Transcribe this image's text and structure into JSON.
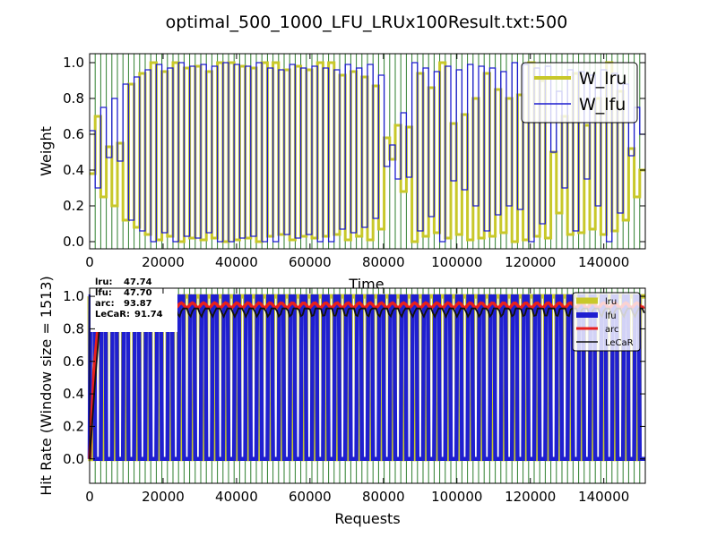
{
  "figure": {
    "title": "optimal_500_1000_LFU_LRUx100Result.txt:500"
  },
  "colors": {
    "vline": "#2f7f2f",
    "lru": "#c8c82a",
    "lfu": "#1f1fd0",
    "lfu_line": "#1c1ccf",
    "arc": "#e8201e",
    "lecar": "#111111"
  },
  "chart_data": [
    {
      "type": "line",
      "title": "",
      "xlabel": "Time",
      "ylabel": "Weight",
      "xlim": [
        0,
        151300
      ],
      "ylim": [
        -0.04,
        1.05
      ],
      "xticks": [
        "0",
        "20000",
        "40000",
        "60000",
        "80000",
        "100000",
        "120000",
        "140000"
      ],
      "yticks": [
        "0.0",
        "0.2",
        "0.4",
        "0.6",
        "0.8",
        "1.0"
      ],
      "grid": false,
      "legend_position": "top-right",
      "vertical_lines": "green vertical marker line every ~1513 requests",
      "series": [
        {
          "name": "W_lru",
          "color": "#c8c82a",
          "note": "complement of W_lfu (W_lru = 1 - W_lfu)"
        },
        {
          "name": "W_lfu",
          "color": "#1c1ccf",
          "step_period": 3026,
          "x": [
            0,
            3026,
            6052,
            9078,
            12104,
            15130,
            18156,
            21182,
            24208,
            27234,
            30260,
            33286,
            36312,
            39338,
            42364,
            45390,
            48416,
            51442,
            54468,
            57494,
            60520,
            63546,
            66572,
            69598,
            72624,
            75650,
            78676,
            81702,
            84728,
            87754,
            90780,
            93806,
            96832,
            99858,
            102884,
            105910,
            108936,
            111962,
            114988,
            118014,
            121040,
            124066,
            127092,
            130118,
            133144,
            136170,
            139196,
            142222,
            145248,
            148274
          ],
          "high": [
            0.62,
            0.75,
            0.8,
            0.88,
            0.92,
            0.96,
            0.99,
            0.97,
            1.0,
            0.98,
            0.99,
            0.98,
            1.0,
            0.99,
            0.98,
            1.0,
            0.97,
            0.96,
            0.99,
            0.97,
            0.98,
            0.97,
            0.96,
            0.99,
            0.97,
            0.99,
            0.93,
            0.54,
            0.72,
            1.0,
            0.97,
            0.95,
            0.98,
            0.96,
            0.99,
            0.98,
            0.97,
            0.95,
            1.0,
            0.99,
            0.97,
            0.98,
            0.84,
            0.96,
            0.95,
            0.93,
            0.96,
            0.94,
            0.88,
            0.75
          ],
          "low": [
            0.3,
            0.47,
            0.45,
            0.12,
            0.06,
            0.0,
            0.05,
            0.0,
            0.03,
            0.02,
            0.05,
            0.0,
            0.0,
            0.02,
            0.03,
            0.0,
            0.0,
            0.04,
            0.02,
            0.04,
            0.0,
            0.0,
            0.07,
            0.05,
            0.08,
            0.13,
            0.42,
            0.35,
            0.36,
            0.06,
            0.14,
            0.0,
            0.34,
            0.29,
            0.2,
            0.06,
            0.15,
            0.2,
            0.18,
            0.0,
            0.1,
            0.5,
            0.3,
            0.06,
            0.35,
            0.2,
            0.0,
            0.16,
            0.48,
            0.6
          ]
        }
      ]
    },
    {
      "type": "line",
      "title": "",
      "xlabel": "Requests",
      "ylabel": "Hit Rate (Window size = 1513)",
      "xlim": [
        0,
        151300
      ],
      "ylim": [
        -0.15,
        1.05
      ],
      "xticks": [
        "0",
        "20000",
        "40000",
        "60000",
        "80000",
        "100000",
        "120000",
        "140000"
      ],
      "yticks": [
        "0.0",
        "0.2",
        "0.4",
        "0.6",
        "0.8",
        "1.0"
      ],
      "grid": false,
      "legend_position": "top-right",
      "stats_box": [
        {
          "name": "lru",
          "value": "47.74"
        },
        {
          "name": "lfu",
          "value": "47.70"
        },
        {
          "name": "arc",
          "value": "93.87"
        },
        {
          "name": "LeCaR",
          "value": "91.74"
        }
      ],
      "series": [
        {
          "name": "lru",
          "color": "#c8c82a",
          "period": 3026,
          "min": 0.0,
          "max": 1.0,
          "note": "square-wave between 0 and 1, opposite phase to lfu"
        },
        {
          "name": "lfu",
          "color": "#1f1fd0",
          "period": 3026,
          "min": 0.0,
          "max": 1.0,
          "note": "square-wave between 0 and 1"
        },
        {
          "name": "arc",
          "color": "#e8201e",
          "start": 0.0,
          "level": 0.945,
          "ripple": 0.015,
          "note": "rises from 0 near x=0 to ~0.95 and stays"
        },
        {
          "name": "LeCaR",
          "color": "#111111",
          "start": 0.0,
          "level": 0.925,
          "ripple": 0.05,
          "note": "rises from 0 near x=0 to ~0.93 with periodic dips"
        }
      ]
    }
  ]
}
